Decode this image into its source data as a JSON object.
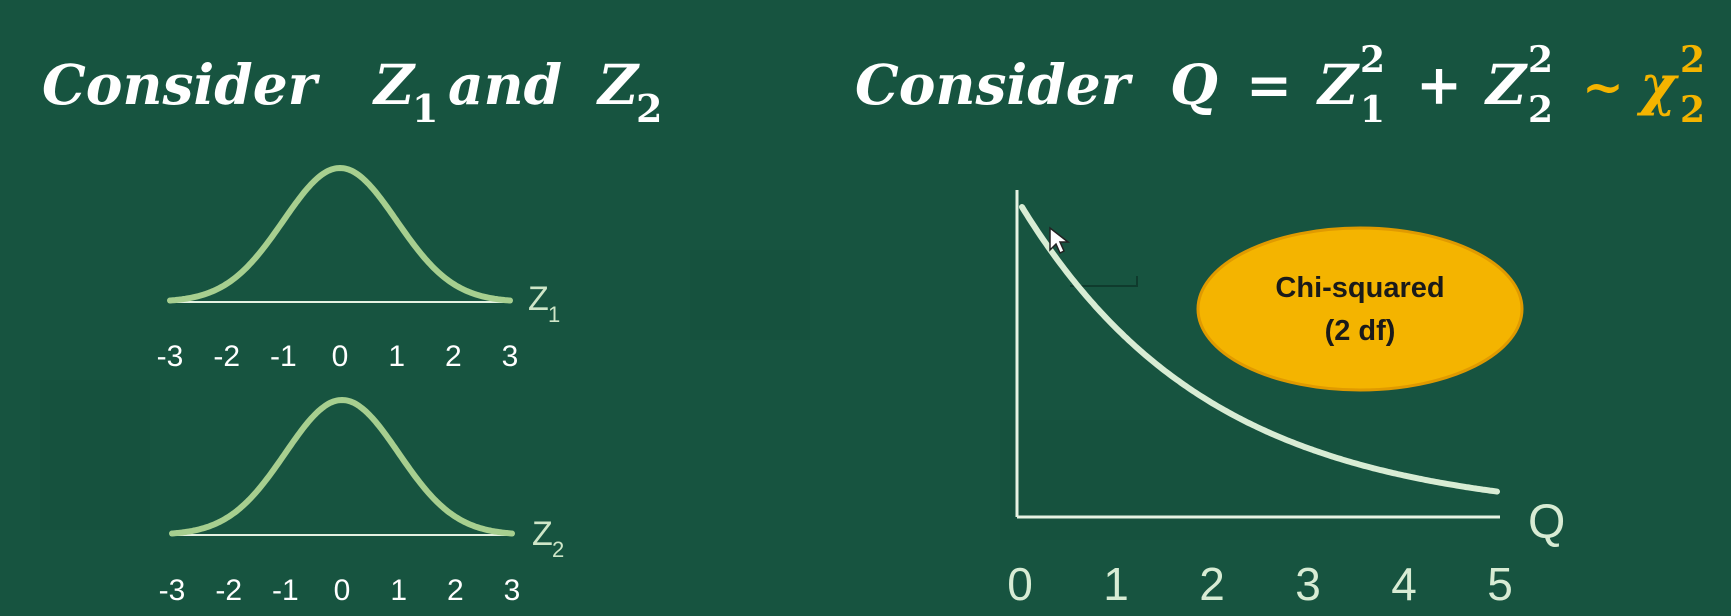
{
  "left_heading": {
    "word_consider": "Consider",
    "var1": "Z",
    "var1_sub": "1",
    "word_and": "and",
    "var2": "Z",
    "var2_sub": "2"
  },
  "right_heading": {
    "word_consider": "Consider",
    "q": "Q",
    "equals": "=",
    "z": "Z",
    "sub1": "1",
    "sup1": "2",
    "plus": "+",
    "sub2": "2",
    "sup2": "2",
    "tilde": "~",
    "chi": "χ",
    "chi_sub": "2",
    "chi_sup": "2"
  },
  "callout": {
    "line1": "Chi-squared",
    "line2": "(2 df)"
  },
  "colors": {
    "background": "#175440",
    "curve_normal": "#a7cf8f",
    "curve_chi": "#d8ecd4",
    "axis": "#e6f2e2",
    "accent": "#f4b400"
  },
  "chart_data": [
    {
      "type": "line",
      "x_ticks": [
        "-3",
        "-2",
        "-1",
        "0",
        "1",
        "2",
        "3"
      ],
      "axis_label": "Z",
      "axis_label_sub": "1",
      "series": [
        {
          "kind": "standard-normal-pdf",
          "mean": 0,
          "sd": 1
        }
      ],
      "xlim": [
        -3,
        3
      ]
    },
    {
      "type": "line",
      "x_ticks": [
        "-3",
        "-2",
        "-1",
        "0",
        "1",
        "2",
        "3"
      ],
      "axis_label": "Z",
      "axis_label_sub": "2",
      "series": [
        {
          "kind": "standard-normal-pdf",
          "mean": 0,
          "sd": 1
        }
      ],
      "xlim": [
        -3,
        3
      ]
    },
    {
      "type": "line",
      "x_ticks": [
        "0",
        "1",
        "2",
        "3",
        "4",
        "5"
      ],
      "axis_label": "Q",
      "series": [
        {
          "kind": "chi-squared-pdf",
          "df": 2
        }
      ],
      "xlim": [
        0,
        5
      ]
    }
  ]
}
